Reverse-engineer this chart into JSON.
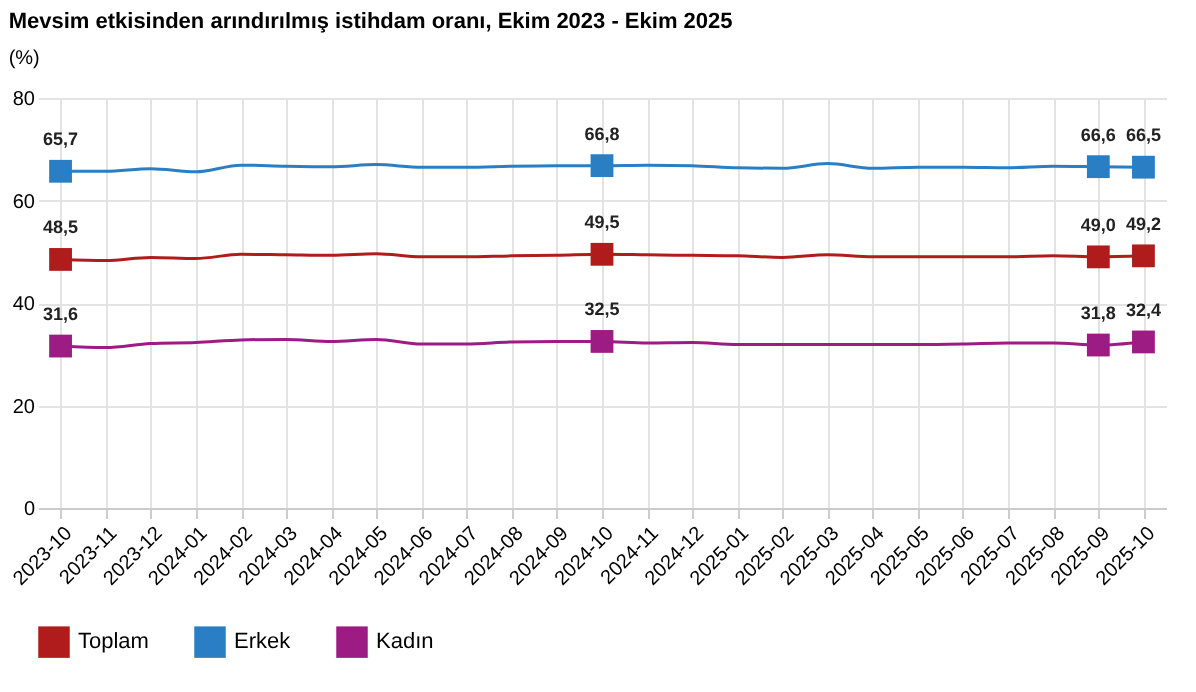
{
  "chart_data": {
    "type": "line",
    "title": "Mevsim etkisinden arındırılmış istihdam oranı, Ekim 2023 - Ekim 2025",
    "subtitle": "(%)",
    "categories": [
      "2023-10",
      "2023-11",
      "2023-12",
      "2024-01",
      "2024-02",
      "2024-03",
      "2024-04",
      "2024-05",
      "2024-06",
      "2024-07",
      "2024-08",
      "2024-09",
      "2024-10",
      "2024-11",
      "2024-12",
      "2025-01",
      "2025-02",
      "2025-03",
      "2025-04",
      "2025-05",
      "2025-06",
      "2025-07",
      "2025-08",
      "2025-09",
      "2025-10"
    ],
    "series": [
      {
        "name": "Toplam",
        "color": "#b01c1c",
        "values": [
          48.5,
          48.3,
          48.9,
          48.7,
          49.5,
          49.4,
          49.3,
          49.6,
          49.0,
          49.0,
          49.2,
          49.3,
          49.5,
          49.4,
          49.3,
          49.2,
          48.9,
          49.4,
          49.0,
          49.0,
          49.0,
          49.0,
          49.2,
          49.0,
          49.2
        ]
      },
      {
        "name": "Erkek",
        "color": "#2a7fc4",
        "values": [
          65.7,
          65.7,
          66.2,
          65.6,
          66.9,
          66.7,
          66.6,
          67.0,
          66.5,
          66.5,
          66.7,
          66.8,
          66.8,
          66.9,
          66.8,
          66.4,
          66.3,
          67.2,
          66.3,
          66.5,
          66.5,
          66.4,
          66.7,
          66.6,
          66.5
        ]
      },
      {
        "name": "Kadın",
        "color": "#9c1c84",
        "values": [
          31.6,
          31.3,
          32.1,
          32.3,
          32.8,
          32.9,
          32.5,
          32.9,
          32.0,
          32.0,
          32.4,
          32.5,
          32.5,
          32.2,
          32.3,
          31.9,
          31.9,
          31.9,
          31.9,
          31.9,
          32.0,
          32.2,
          32.2,
          31.8,
          32.4
        ]
      },
      {
        "type": "scatter",
        "marker": "square",
        "color": "#b01c1c",
        "values": [
          48.5,
          null,
          null,
          null,
          null,
          null,
          null,
          null,
          null,
          null,
          null,
          null,
          49.5,
          null,
          null,
          null,
          null,
          null,
          null,
          null,
          null,
          null,
          null,
          49.0,
          49.2
        ],
        "value_labels": [
          "48,5",
          null,
          null,
          null,
          null,
          null,
          null,
          null,
          null,
          null,
          null,
          null,
          "49,5",
          null,
          null,
          null,
          null,
          null,
          null,
          null,
          null,
          null,
          null,
          "49,0",
          "49,2"
        ]
      },
      {
        "type": "scatter",
        "marker": "square",
        "color": "#2a7fc4",
        "values": [
          65.7,
          null,
          null,
          null,
          null,
          null,
          null,
          null,
          null,
          null,
          null,
          null,
          66.8,
          null,
          null,
          null,
          null,
          null,
          null,
          null,
          null,
          null,
          null,
          66.6,
          66.5
        ],
        "value_labels": [
          "65,7",
          null,
          null,
          null,
          null,
          null,
          null,
          null,
          null,
          null,
          null,
          null,
          "66,8",
          null,
          null,
          null,
          null,
          null,
          null,
          null,
          null,
          null,
          null,
          "66,6",
          "66,5"
        ]
      },
      {
        "type": "scatter",
        "marker": "square",
        "color": "#9c1c84",
        "values": [
          31.6,
          null,
          null,
          null,
          null,
          null,
          null,
          null,
          null,
          null,
          null,
          null,
          32.5,
          null,
          null,
          null,
          null,
          null,
          null,
          null,
          null,
          null,
          null,
          31.8,
          32.4
        ],
        "value_labels": [
          "31,6",
          null,
          null,
          null,
          null,
          null,
          null,
          null,
          null,
          null,
          null,
          null,
          "32,5",
          null,
          null,
          null,
          null,
          null,
          null,
          null,
          null,
          null,
          null,
          "31,8",
          "32,4"
        ]
      }
    ],
    "ylim": [
      0,
      80
    ],
    "yticks": [
      0,
      20,
      40,
      60,
      80
    ],
    "grid": true,
    "legend": "bottom",
    "line_style": "solid"
  }
}
